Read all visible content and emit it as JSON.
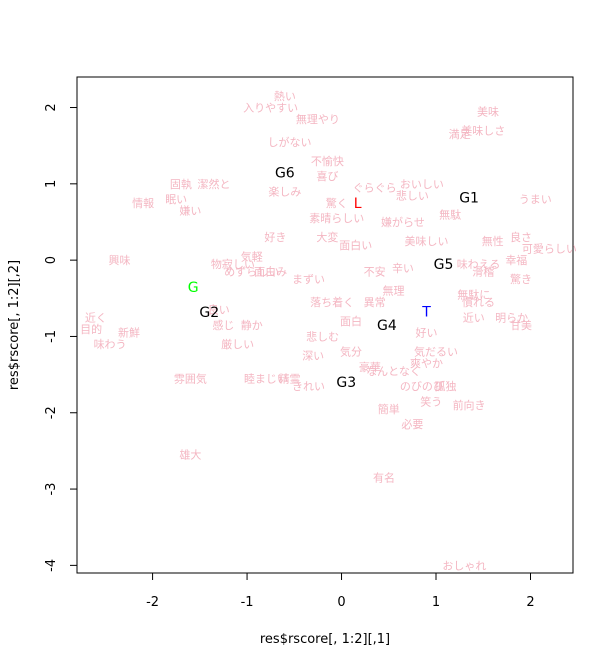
{
  "chart_data": {
    "type": "scatter",
    "xlabel": "res$rscore[, 1:2][,1]",
    "ylabel": "res$rscore[, 1:2][,2]",
    "xlim": [
      -2.8,
      2.45
    ],
    "ylim": [
      -4.1,
      2.4
    ],
    "x_ticks": [
      -2,
      -1,
      0,
      1,
      2
    ],
    "y_ticks": [
      -4,
      -3,
      -2,
      -1,
      0,
      1,
      2
    ],
    "grid": false,
    "word_color": "#f4b6c2",
    "word_points": [
      {
        "label": "美味",
        "x": 1.55,
        "y": 1.95
      },
      {
        "label": "熱い",
        "x": -0.6,
        "y": 2.15
      },
      {
        "label": "入りやすい",
        "x": -0.75,
        "y": 2.0
      },
      {
        "label": "無理やり",
        "x": -0.25,
        "y": 1.85
      },
      {
        "label": "美味しさ",
        "x": 1.5,
        "y": 1.7
      },
      {
        "label": "満足",
        "x": 1.25,
        "y": 1.65
      },
      {
        "label": "しがない",
        "x": -0.55,
        "y": 1.55
      },
      {
        "label": "不愉快",
        "x": -0.15,
        "y": 1.3
      },
      {
        "label": "喜び",
        "x": -0.15,
        "y": 1.1
      },
      {
        "label": "楽しみ",
        "x": -0.6,
        "y": 0.9
      },
      {
        "label": "固執",
        "x": -1.7,
        "y": 1.0
      },
      {
        "label": "潔然と",
        "x": -1.35,
        "y": 1.0
      },
      {
        "label": "情報",
        "x": -2.1,
        "y": 0.75
      },
      {
        "label": "眠い",
        "x": -1.75,
        "y": 0.8
      },
      {
        "label": "嫌い",
        "x": -1.6,
        "y": 0.65
      },
      {
        "label": "驚く",
        "x": -0.05,
        "y": 0.75
      },
      {
        "label": "素晴らしい",
        "x": -0.05,
        "y": 0.55
      },
      {
        "label": "大変",
        "x": -0.15,
        "y": 0.3
      },
      {
        "label": "面白い",
        "x": 0.15,
        "y": 0.2
      },
      {
        "label": "好き",
        "x": -0.7,
        "y": 0.3
      },
      {
        "label": "気軽",
        "x": -0.95,
        "y": 0.05
      },
      {
        "label": "物寂しい",
        "x": -1.15,
        "y": -0.05
      },
      {
        "label": "めずらしい",
        "x": -0.95,
        "y": -0.15
      },
      {
        "label": "面白み",
        "x": -0.75,
        "y": -0.15
      },
      {
        "label": "興味",
        "x": -2.35,
        "y": 0.0
      },
      {
        "label": "ぐらぐら",
        "x": 0.35,
        "y": 0.95
      },
      {
        "label": "おいしい",
        "x": 0.85,
        "y": 1.0
      },
      {
        "label": "悲しい",
        "x": 0.75,
        "y": 0.85
      },
      {
        "label": "無駄",
        "x": 1.15,
        "y": 0.6
      },
      {
        "label": "嫌がらせ",
        "x": 0.65,
        "y": 0.5
      },
      {
        "label": "美味しい",
        "x": 0.9,
        "y": 0.25
      },
      {
        "label": "無性",
        "x": 1.6,
        "y": 0.25
      },
      {
        "label": "良さ",
        "x": 1.9,
        "y": 0.3
      },
      {
        "label": "うまい",
        "x": 2.05,
        "y": 0.8
      },
      {
        "label": "可愛らしい",
        "x": 2.2,
        "y": 0.15
      },
      {
        "label": "幸福",
        "x": 1.85,
        "y": 0.0
      },
      {
        "label": "味わえる",
        "x": 1.45,
        "y": -0.05
      },
      {
        "label": "滑稽",
        "x": 1.5,
        "y": -0.15
      },
      {
        "label": "驚き",
        "x": 1.9,
        "y": -0.25
      },
      {
        "label": "不安",
        "x": 0.35,
        "y": -0.15
      },
      {
        "label": "辛い",
        "x": 0.65,
        "y": -0.1
      },
      {
        "label": "無理",
        "x": 0.55,
        "y": -0.4
      },
      {
        "label": "まずい",
        "x": -0.35,
        "y": -0.25
      },
      {
        "label": "落ち着く",
        "x": -0.1,
        "y": -0.55
      },
      {
        "label": "異常",
        "x": 0.35,
        "y": -0.55
      },
      {
        "label": "無駄に",
        "x": 1.4,
        "y": -0.45
      },
      {
        "label": "慣れる",
        "x": 1.45,
        "y": -0.55
      },
      {
        "label": "近い",
        "x": 1.4,
        "y": -0.75
      },
      {
        "label": "明らか",
        "x": 1.8,
        "y": -0.75
      },
      {
        "label": "甘美",
        "x": 1.9,
        "y": -0.85
      },
      {
        "label": "近く",
        "x": -2.6,
        "y": -0.75
      },
      {
        "label": "目的",
        "x": -2.65,
        "y": -0.9
      },
      {
        "label": "新鮮",
        "x": -2.25,
        "y": -0.95
      },
      {
        "label": "味わう",
        "x": -2.45,
        "y": -1.1
      },
      {
        "label": "良い",
        "x": -1.3,
        "y": -0.65
      },
      {
        "label": "感じ",
        "x": -1.25,
        "y": -0.85
      },
      {
        "label": "静か",
        "x": -0.95,
        "y": -0.85
      },
      {
        "label": "深い",
        "x": -0.3,
        "y": -1.25
      },
      {
        "label": "悲しむ",
        "x": -0.2,
        "y": -1.0
      },
      {
        "label": "厳しい",
        "x": -1.1,
        "y": -1.1
      },
      {
        "label": "面白",
        "x": 0.1,
        "y": -0.8
      },
      {
        "label": "気分",
        "x": 0.1,
        "y": -1.2
      },
      {
        "label": "豪華",
        "x": 0.3,
        "y": -1.4
      },
      {
        "label": "なんとなく",
        "x": 0.55,
        "y": -1.45
      },
      {
        "label": "爽やか",
        "x": 0.9,
        "y": -1.35
      },
      {
        "label": "気だるい",
        "x": 1.0,
        "y": -1.2
      },
      {
        "label": "好い",
        "x": 0.9,
        "y": -0.95
      },
      {
        "label": "雰囲気",
        "x": -1.6,
        "y": -1.55
      },
      {
        "label": "睦まじい",
        "x": -0.8,
        "y": -1.55
      },
      {
        "label": "精霊",
        "x": -0.55,
        "y": -1.55
      },
      {
        "label": "きれい",
        "x": -0.35,
        "y": -1.65
      },
      {
        "label": "のびのび",
        "x": 0.85,
        "y": -1.65
      },
      {
        "label": "孤独",
        "x": 1.1,
        "y": -1.65
      },
      {
        "label": "笑う",
        "x": 0.95,
        "y": -1.85
      },
      {
        "label": "前向き",
        "x": 1.35,
        "y": -1.9
      },
      {
        "label": "簡単",
        "x": 0.5,
        "y": -1.95
      },
      {
        "label": "必要",
        "x": 0.75,
        "y": -2.15
      },
      {
        "label": "雄大",
        "x": -1.6,
        "y": -2.55
      },
      {
        "label": "有名",
        "x": 0.45,
        "y": -2.85
      },
      {
        "label": "おしゃれ",
        "x": 1.3,
        "y": -4.0
      }
    ],
    "cluster_points": [
      {
        "label": "G1",
        "x": 1.35,
        "y": 0.82,
        "color": "#000000"
      },
      {
        "label": "G2",
        "x": -1.4,
        "y": -0.68,
        "color": "#000000"
      },
      {
        "label": "G3",
        "x": 0.05,
        "y": -1.6,
        "color": "#000000"
      },
      {
        "label": "G4",
        "x": 0.48,
        "y": -0.85,
        "color": "#000000"
      },
      {
        "label": "G5",
        "x": 1.08,
        "y": -0.05,
        "color": "#000000"
      },
      {
        "label": "G6",
        "x": -0.6,
        "y": 1.15,
        "color": "#000000"
      },
      {
        "label": "L",
        "x": 0.17,
        "y": 0.75,
        "color": "#ff0000"
      },
      {
        "label": "T",
        "x": 0.9,
        "y": -0.67,
        "color": "#0000ff"
      },
      {
        "label": "G",
        "x": -1.57,
        "y": -0.35,
        "color": "#00ff00"
      }
    ]
  }
}
